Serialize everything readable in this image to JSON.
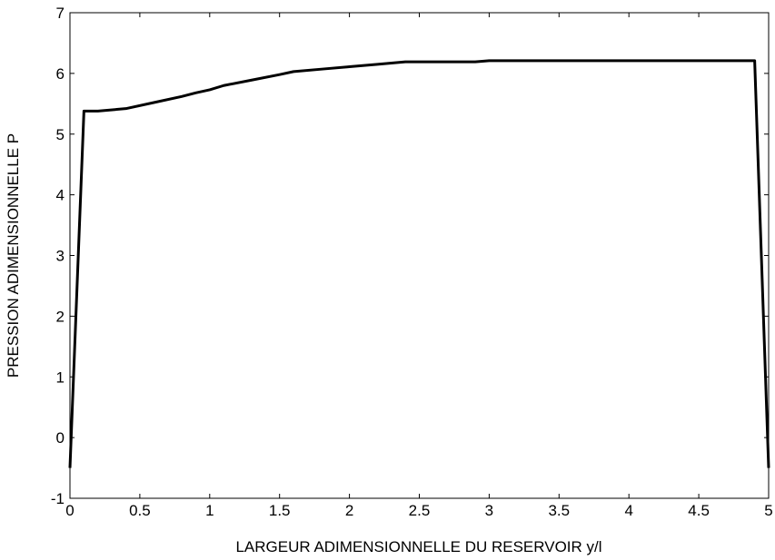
{
  "chart_data": {
    "type": "line",
    "title": "",
    "xlabel": "LARGEUR ADIMENSIONNELLE DU RESERVOIR y/l",
    "ylabel": "PRESSION ADIMENSIONNELLE P",
    "xlim": [
      0,
      5
    ],
    "ylim": [
      -1,
      7
    ],
    "x_ticks": [
      0,
      0.5,
      1,
      1.5,
      2,
      2.5,
      3,
      3.5,
      4,
      4.5,
      5
    ],
    "x_tick_labels": [
      "0",
      "0.5",
      "1",
      "1.5",
      "2",
      "2.5",
      "3",
      "3.5",
      "4",
      "4.5",
      "5"
    ],
    "y_ticks": [
      -1,
      0,
      1,
      2,
      3,
      4,
      5,
      6,
      7
    ],
    "y_tick_labels": [
      "-1",
      "0",
      "1",
      "2",
      "3",
      "4",
      "5",
      "6",
      "7"
    ],
    "grid": false,
    "line_color": "#000000",
    "series": [
      {
        "x": [
          0.0,
          0.1,
          0.2,
          0.4,
          0.6,
          0.8,
          0.9,
          1.0,
          1.1,
          1.3,
          1.5,
          1.6,
          1.8,
          2.0,
          2.2,
          2.3,
          2.4,
          2.6,
          2.9,
          3.0,
          3.5,
          4.0,
          4.5,
          4.9,
          5.0
        ],
        "y": [
          -0.5,
          5.38,
          5.38,
          5.42,
          5.52,
          5.62,
          5.68,
          5.73,
          5.8,
          5.89,
          5.98,
          6.03,
          6.07,
          6.11,
          6.15,
          6.17,
          6.19,
          6.19,
          6.19,
          6.21,
          6.21,
          6.21,
          6.21,
          6.21,
          -0.5
        ]
      }
    ]
  }
}
